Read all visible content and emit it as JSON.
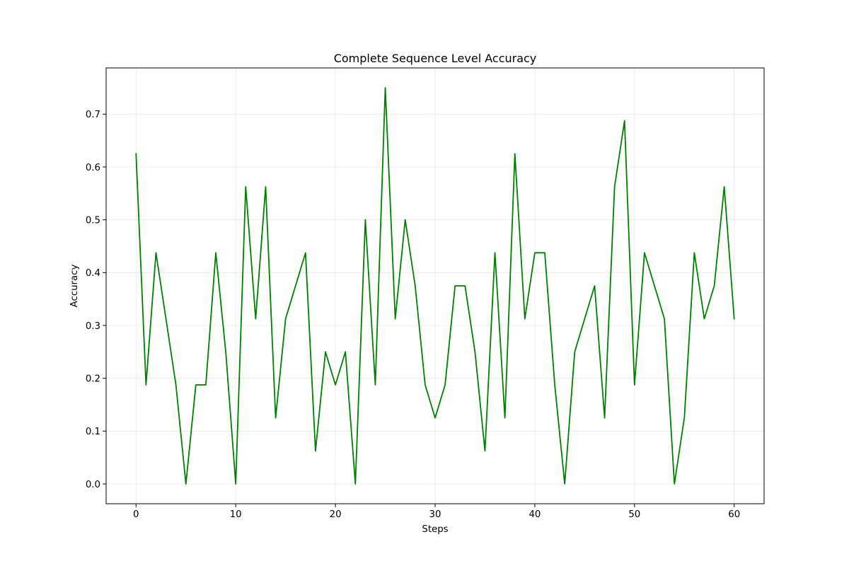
{
  "chart_data": {
    "type": "line",
    "title": "Complete Sequence Level Accuracy",
    "xlabel": "Steps",
    "ylabel": "Accuracy",
    "xlim": [
      -3,
      63
    ],
    "ylim": [
      -0.0375,
      0.7875
    ],
    "xticks": [
      0,
      10,
      20,
      30,
      40,
      50,
      60
    ],
    "yticks": [
      0.0,
      0.1,
      0.2,
      0.3,
      0.4,
      0.5,
      0.6,
      0.7
    ],
    "ytick_labels": [
      "0.0",
      "0.1",
      "0.2",
      "0.3",
      "0.4",
      "0.5",
      "0.6",
      "0.7"
    ],
    "grid": true,
    "legend": "none",
    "series": [
      {
        "color": "#008000",
        "x": [
          0,
          1,
          2,
          3,
          4,
          5,
          6,
          7,
          8,
          9,
          10,
          11,
          12,
          13,
          14,
          15,
          16,
          17,
          18,
          19,
          20,
          21,
          22,
          23,
          24,
          25,
          26,
          27,
          28,
          29,
          30,
          31,
          32,
          33,
          34,
          35,
          36,
          37,
          38,
          39,
          40,
          41,
          42,
          43,
          44,
          45,
          46,
          47,
          48,
          49,
          50,
          51,
          52,
          53,
          54,
          55,
          56,
          57,
          58,
          59,
          60
        ],
        "values": [
          0.625,
          0.1875,
          0.4375,
          0.3125,
          0.1875,
          0.0,
          0.1875,
          0.1875,
          0.4375,
          0.25,
          0.0,
          0.5625,
          0.3125,
          0.5625,
          0.125,
          0.3125,
          0.375,
          0.4375,
          0.0625,
          0.25,
          0.1875,
          0.25,
          0.0,
          0.5,
          0.1875,
          0.75,
          0.3125,
          0.5,
          0.375,
          0.1875,
          0.125,
          0.1875,
          0.375,
          0.375,
          0.25,
          0.0625,
          0.4375,
          0.125,
          0.625,
          0.3125,
          0.4375,
          0.4375,
          0.1875,
          0.0,
          0.25,
          0.3125,
          0.375,
          0.125,
          0.5625,
          0.6875,
          0.1875,
          0.4375,
          0.375,
          0.3125,
          0.0,
          0.125,
          0.4375,
          0.3125,
          0.375,
          0.5625,
          0.3125
        ]
      }
    ]
  }
}
